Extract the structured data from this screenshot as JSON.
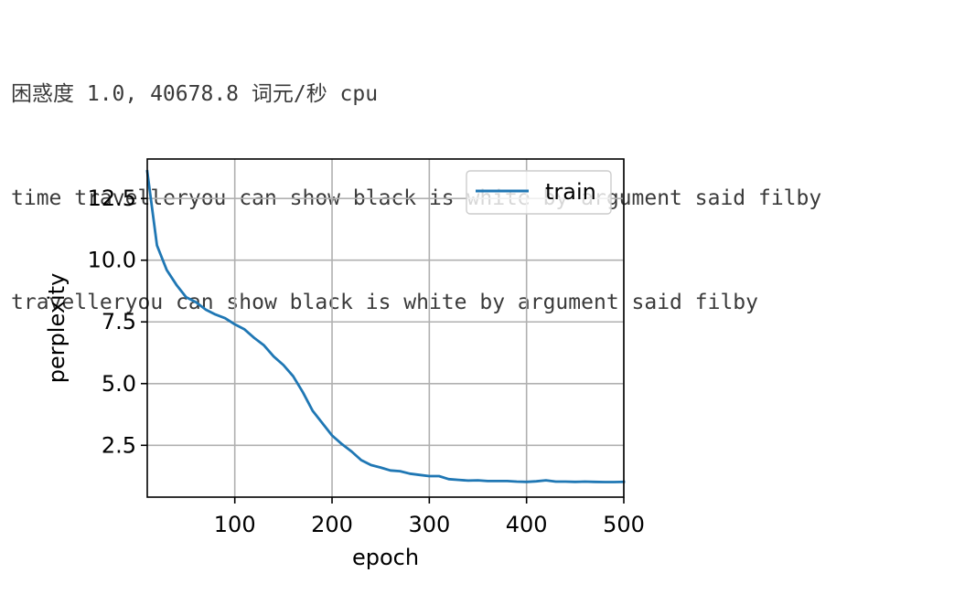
{
  "output_lines": [
    "困惑度 1.0, 40678.8 词元/秒 cpu",
    "time travelleryou can show black is white by argument said filby",
    "travelleryou can show black is white by argument said filby"
  ],
  "chart_data": {
    "type": "line",
    "xlabel": "epoch",
    "ylabel": "perplexity",
    "xlim": [
      10,
      500
    ],
    "ylim": [
      0.4,
      14.1
    ],
    "xticks": [
      100,
      200,
      300,
      400,
      500
    ],
    "xtick_labels": [
      "100",
      "200",
      "300",
      "400",
      "500"
    ],
    "yticks": [
      2.5,
      5.0,
      7.5,
      10.0,
      12.5
    ],
    "ytick_labels": [
      "2.5",
      "5.0",
      "7.5",
      "10.0",
      "12.5"
    ],
    "grid": true,
    "legend_position": "upper-right",
    "series": [
      {
        "name": "train",
        "color": "#1f77b4",
        "x": [
          10,
          20,
          30,
          40,
          50,
          60,
          70,
          80,
          90,
          100,
          110,
          120,
          130,
          140,
          150,
          160,
          170,
          180,
          190,
          200,
          210,
          220,
          230,
          240,
          250,
          260,
          270,
          280,
          290,
          300,
          310,
          320,
          330,
          340,
          350,
          360,
          370,
          380,
          390,
          400,
          410,
          420,
          430,
          440,
          450,
          460,
          470,
          480,
          490,
          500
        ],
        "y": [
          13.6,
          10.6,
          9.6,
          9.0,
          8.5,
          8.3,
          8.0,
          7.8,
          7.65,
          7.4,
          7.2,
          6.85,
          6.55,
          6.1,
          5.75,
          5.3,
          4.65,
          3.9,
          3.4,
          2.9,
          2.55,
          2.25,
          1.9,
          1.7,
          1.6,
          1.48,
          1.45,
          1.35,
          1.3,
          1.25,
          1.25,
          1.13,
          1.1,
          1.07,
          1.08,
          1.05,
          1.05,
          1.05,
          1.03,
          1.02,
          1.04,
          1.08,
          1.03,
          1.03,
          1.02,
          1.03,
          1.02,
          1.01,
          1.01,
          1.02
        ]
      }
    ]
  }
}
